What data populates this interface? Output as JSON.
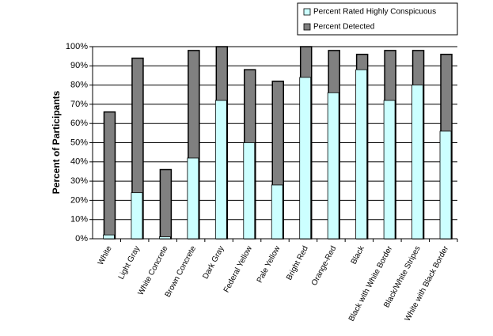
{
  "chart_data": {
    "type": "overlap_bar",
    "y_label": "Percent of Participants",
    "categories": [
      "White",
      "Light Gray",
      "White Concrete",
      "Brown Concrete",
      "Dark Gray",
      "Federal Yellow",
      "Pale Yellow",
      "Bright Red",
      "Orange-Red",
      "Black",
      "Black with White Border",
      "Black/White Stripes",
      "White with Black Border"
    ],
    "series": [
      {
        "name": "Percent Rated Highly Conspicuous",
        "color": "#ccffff",
        "values": [
          2,
          24,
          1,
          42,
          72,
          50,
          28,
          84,
          76,
          88,
          72,
          80,
          56
        ]
      },
      {
        "name": "Percent Detected",
        "color": "#808080",
        "values": [
          66,
          94,
          36,
          98,
          100,
          88,
          82,
          100,
          98,
          96,
          98,
          98,
          96
        ]
      }
    ],
    "ylim": [
      0,
      100
    ],
    "yticks": [
      {
        "value": 0,
        "label": "0%"
      },
      {
        "value": 10,
        "label": "10%"
      },
      {
        "value": 20,
        "label": "20%"
      },
      {
        "value": 30,
        "label": "30%"
      },
      {
        "value": 40,
        "label": "40%"
      },
      {
        "value": 50,
        "label": "50%"
      },
      {
        "value": 60,
        "label": "60%"
      },
      {
        "value": 70,
        "label": "70%"
      },
      {
        "value": 80,
        "label": "80%"
      },
      {
        "value": 90,
        "label": "90%"
      },
      {
        "value": 100,
        "label": "100%"
      }
    ],
    "grid": true
  }
}
